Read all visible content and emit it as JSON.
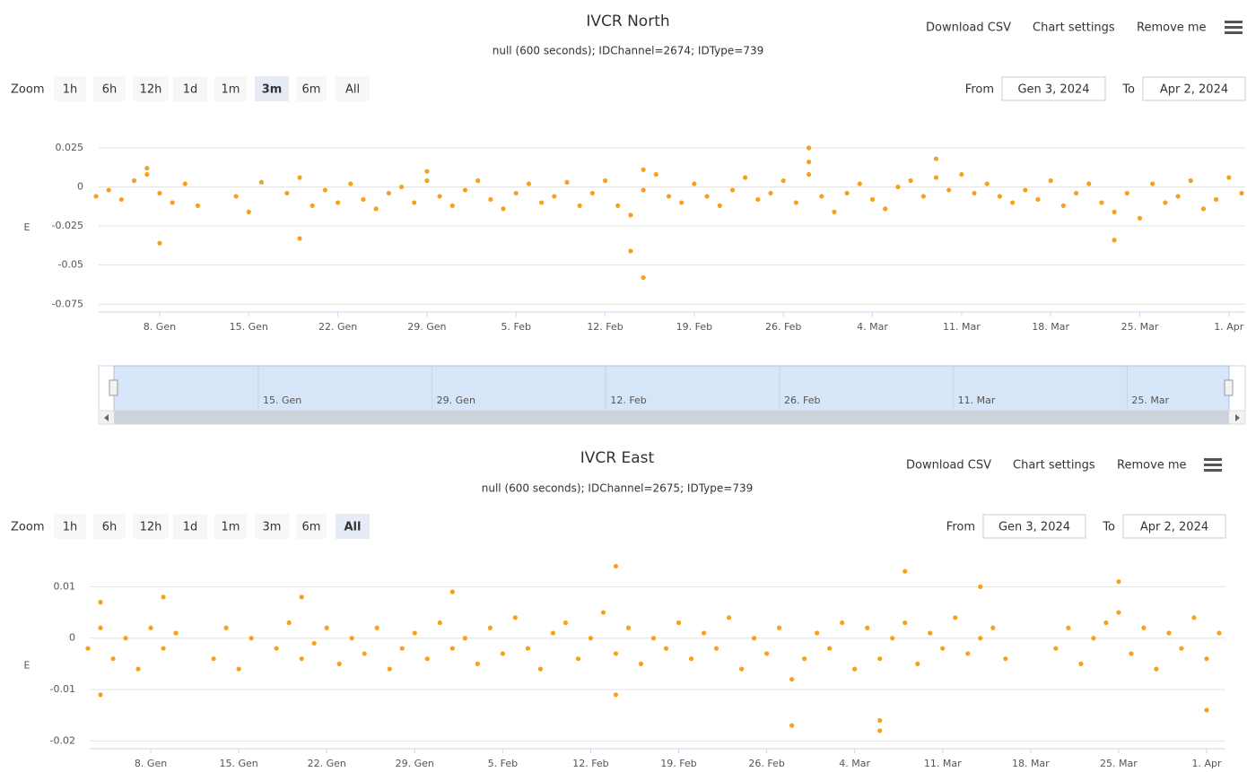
{
  "chart_data": [
    {
      "type": "scatter",
      "title": "IVCR North",
      "subtitle": "null (600 seconds); IDChannel=2674; IDType=739",
      "menu": [
        "Download CSV",
        "Chart settings",
        "Remove me"
      ],
      "zoom_label": "Zoom",
      "zoom_buttons": [
        "1h",
        "6h",
        "12h",
        "1d",
        "1m",
        "3m",
        "6m",
        "All"
      ],
      "zoom_selected": "3m",
      "zoom_disabled": [
        "6m",
        "All"
      ],
      "from_label": "From",
      "from": "Gen 3, 2024",
      "to_label": "To",
      "to": "Apr 2, 2024",
      "y_label": "E",
      "color": "#f7a11a",
      "grid": true,
      "xlim": [
        "2024-01-03",
        "2024-04-02"
      ],
      "xticks": [
        {
          "value": "2024-01-08",
          "label": "8. Gen"
        },
        {
          "value": "2024-01-15",
          "label": "15. Gen"
        },
        {
          "value": "2024-01-22",
          "label": "22. Gen"
        },
        {
          "value": "2024-01-29",
          "label": "29. Gen"
        },
        {
          "value": "2024-02-05",
          "label": "5. Feb"
        },
        {
          "value": "2024-02-12",
          "label": "12. Feb"
        },
        {
          "value": "2024-02-19",
          "label": "19. Feb"
        },
        {
          "value": "2024-02-26",
          "label": "26. Feb"
        },
        {
          "value": "2024-03-04",
          "label": "4. Mar"
        },
        {
          "value": "2024-03-11",
          "label": "11. Mar"
        },
        {
          "value": "2024-03-18",
          "label": "18. Mar"
        },
        {
          "value": "2024-03-25",
          "label": "25. Mar"
        },
        {
          "value": "2024-04-01",
          "label": "1. Apr"
        }
      ],
      "ylim": [
        -0.08,
        0.045
      ],
      "yticks": [
        -0.075,
        -0.05,
        -0.025,
        0,
        0.025
      ],
      "navigator_ticks": [
        {
          "value": "2024-01-15",
          "label": "15. Gen"
        },
        {
          "value": "2024-01-29",
          "label": "29. Gen"
        },
        {
          "value": "2024-02-12",
          "label": "12. Feb"
        },
        {
          "value": "2024-02-26",
          "label": "26. Feb"
        },
        {
          "value": "2024-03-11",
          "label": "11. Mar"
        },
        {
          "value": "2024-03-25",
          "label": "25. Mar"
        }
      ],
      "x": [
        "2024-01-03",
        "2024-01-04",
        "2024-01-05",
        "2024-01-06",
        "2024-01-07",
        "2024-01-08",
        "2024-01-09",
        "2024-01-10",
        "2024-01-11",
        "2024-01-14",
        "2024-01-15",
        "2024-01-16",
        "2024-01-18",
        "2024-01-19",
        "2024-01-20",
        "2024-01-21",
        "2024-01-22",
        "2024-01-23",
        "2024-01-24",
        "2024-01-25",
        "2024-01-26",
        "2024-01-27",
        "2024-01-28",
        "2024-01-29",
        "2024-01-30",
        "2024-01-31",
        "2024-02-01",
        "2024-02-02",
        "2024-02-03",
        "2024-02-04",
        "2024-02-05",
        "2024-02-06",
        "2024-02-07",
        "2024-02-08",
        "2024-02-09",
        "2024-02-10",
        "2024-02-11",
        "2024-02-12",
        "2024-02-13",
        "2024-02-14",
        "2024-02-15",
        "2024-02-16",
        "2024-02-17",
        "2024-02-18",
        "2024-02-19",
        "2024-02-20",
        "2024-02-21",
        "2024-02-22",
        "2024-02-23",
        "2024-02-24",
        "2024-02-25",
        "2024-02-26",
        "2024-02-27",
        "2024-02-28",
        "2024-02-29",
        "2024-03-01",
        "2024-03-02",
        "2024-03-03",
        "2024-03-04",
        "2024-03-05",
        "2024-03-06",
        "2024-03-07",
        "2024-03-08",
        "2024-03-09",
        "2024-03-10",
        "2024-03-11",
        "2024-03-12",
        "2024-03-13",
        "2024-03-14",
        "2024-03-15",
        "2024-03-16",
        "2024-03-17",
        "2024-03-18",
        "2024-03-19",
        "2024-03-20",
        "2024-03-21",
        "2024-03-22",
        "2024-03-23",
        "2024-03-24",
        "2024-03-25",
        "2024-03-26",
        "2024-03-27",
        "2024-03-28",
        "2024-03-29",
        "2024-03-30",
        "2024-03-31",
        "2024-04-01",
        "2024-04-02",
        "2024-01-08",
        "2024-01-07",
        "2024-01-19",
        "2024-01-29",
        "2024-02-14",
        "2024-02-15",
        "2024-02-28",
        "2024-02-28",
        "2024-03-09",
        "2024-03-23",
        "2024-02-15"
      ],
      "values": [
        -0.006,
        -0.002,
        -0.008,
        0.004,
        0.008,
        -0.004,
        -0.01,
        0.002,
        -0.012,
        -0.006,
        -0.016,
        0.003,
        -0.004,
        0.006,
        -0.012,
        -0.002,
        -0.01,
        0.002,
        -0.008,
        -0.014,
        -0.004,
        0,
        -0.01,
        0.004,
        -0.006,
        -0.012,
        -0.002,
        0.004,
        -0.008,
        -0.014,
        -0.004,
        0.002,
        -0.01,
        -0.006,
        0.003,
        -0.012,
        -0.004,
        0.004,
        -0.012,
        -0.018,
        -0.002,
        0.008,
        -0.006,
        -0.01,
        0.002,
        -0.006,
        -0.012,
        -0.002,
        0.006,
        -0.008,
        -0.004,
        0.004,
        -0.01,
        0.008,
        -0.006,
        -0.016,
        -0.004,
        0.002,
        -0.008,
        -0.014,
        0,
        0.004,
        -0.006,
        0.006,
        -0.002,
        0.008,
        -0.004,
        0.002,
        -0.006,
        -0.01,
        -0.002,
        -0.008,
        0.004,
        -0.012,
        -0.004,
        0.002,
        -0.01,
        -0.016,
        -0.004,
        -0.02,
        0.002,
        -0.01,
        -0.006,
        0.004,
        -0.014,
        -0.008,
        0.006,
        -0.004,
        -0.036,
        0.012,
        -0.033,
        0.01,
        -0.041,
        -0.058,
        0.025,
        0.016,
        0.018,
        -0.034,
        0.011
      ]
    },
    {
      "type": "scatter",
      "title": "IVCR East",
      "subtitle": "null (600 seconds); IDChannel=2675; IDType=739",
      "menu": [
        "Download CSV",
        "Chart settings",
        "Remove me"
      ],
      "zoom_label": "Zoom",
      "zoom_buttons": [
        "1h",
        "6h",
        "12h",
        "1d",
        "1m",
        "3m",
        "6m",
        "All"
      ],
      "zoom_selected": "All",
      "zoom_disabled": [
        "6m"
      ],
      "from_label": "From",
      "from": "Gen 3, 2024",
      "to_label": "To",
      "to": "Apr 2, 2024",
      "y_label": "E",
      "color": "#f7a11a",
      "grid": true,
      "xlim": [
        "2024-01-03",
        "2024-04-02"
      ],
      "xticks": [
        {
          "value": "2024-01-08",
          "label": "8. Gen"
        },
        {
          "value": "2024-01-15",
          "label": "15. Gen"
        },
        {
          "value": "2024-01-22",
          "label": "22. Gen"
        },
        {
          "value": "2024-01-29",
          "label": "29. Gen"
        },
        {
          "value": "2024-02-05",
          "label": "5. Feb"
        },
        {
          "value": "2024-02-12",
          "label": "12. Feb"
        },
        {
          "value": "2024-02-19",
          "label": "19. Feb"
        },
        {
          "value": "2024-02-26",
          "label": "26. Feb"
        },
        {
          "value": "2024-03-04",
          "label": "4. Mar"
        },
        {
          "value": "2024-03-11",
          "label": "11. Mar"
        },
        {
          "value": "2024-03-18",
          "label": "18. Mar"
        },
        {
          "value": "2024-03-25",
          "label": "25. Mar"
        },
        {
          "value": "2024-04-01",
          "label": "1. Apr"
        }
      ],
      "ylim": [
        -0.0215,
        0.016
      ],
      "yticks": [
        -0.02,
        -0.01,
        0,
        0.01
      ],
      "x": [
        "2024-01-03",
        "2024-01-04",
        "2024-01-05",
        "2024-01-06",
        "2024-01-07",
        "2024-01-08",
        "2024-01-09",
        "2024-01-10",
        "2024-01-13",
        "2024-01-14",
        "2024-01-15",
        "2024-01-16",
        "2024-01-18",
        "2024-01-19",
        "2024-01-20",
        "2024-01-21",
        "2024-01-22",
        "2024-01-23",
        "2024-01-24",
        "2024-01-25",
        "2024-01-26",
        "2024-01-27",
        "2024-01-28",
        "2024-01-29",
        "2024-01-30",
        "2024-01-31",
        "2024-02-01",
        "2024-02-02",
        "2024-02-03",
        "2024-02-04",
        "2024-02-05",
        "2024-02-06",
        "2024-02-07",
        "2024-02-08",
        "2024-02-09",
        "2024-02-10",
        "2024-02-11",
        "2024-02-12",
        "2024-02-13",
        "2024-02-14",
        "2024-02-15",
        "2024-02-16",
        "2024-02-17",
        "2024-02-18",
        "2024-02-19",
        "2024-02-20",
        "2024-02-21",
        "2024-02-22",
        "2024-02-23",
        "2024-02-24",
        "2024-02-25",
        "2024-02-26",
        "2024-02-27",
        "2024-02-28",
        "2024-02-29",
        "2024-03-01",
        "2024-03-02",
        "2024-03-03",
        "2024-03-04",
        "2024-03-05",
        "2024-03-06",
        "2024-03-07",
        "2024-03-08",
        "2024-03-09",
        "2024-03-10",
        "2024-03-11",
        "2024-03-12",
        "2024-03-13",
        "2024-03-14",
        "2024-03-15",
        "2024-03-16",
        "2024-03-20",
        "2024-03-21",
        "2024-03-22",
        "2024-03-23",
        "2024-03-24",
        "2024-03-25",
        "2024-03-26",
        "2024-03-27",
        "2024-03-28",
        "2024-03-29",
        "2024-03-30",
        "2024-03-31",
        "2024-04-01",
        "2024-04-02",
        "2024-01-04",
        "2024-01-04",
        "2024-01-09",
        "2024-01-20",
        "2024-02-01",
        "2024-02-14",
        "2024-02-14",
        "2024-02-28",
        "2024-03-06",
        "2024-03-06",
        "2024-03-08",
        "2024-03-14",
        "2024-03-25",
        "2024-04-01"
      ],
      "values": [
        -0.002,
        0.002,
        -0.004,
        0,
        -0.006,
        0.002,
        -0.002,
        0.001,
        -0.004,
        0.002,
        -0.006,
        0,
        -0.002,
        0.003,
        -0.004,
        -0.001,
        0.002,
        -0.005,
        0,
        -0.003,
        0.002,
        -0.006,
        -0.002,
        0.001,
        -0.004,
        0.003,
        -0.002,
        0,
        -0.005,
        0.002,
        -0.003,
        0.004,
        -0.002,
        -0.006,
        0.001,
        0.003,
        -0.004,
        0,
        0.005,
        -0.003,
        0.002,
        -0.005,
        0,
        -0.002,
        0.003,
        -0.004,
        0.001,
        -0.002,
        0.004,
        -0.006,
        0,
        -0.003,
        0.002,
        -0.008,
        -0.004,
        0.001,
        -0.002,
        0.003,
        -0.006,
        0.002,
        -0.004,
        0,
        0.003,
        -0.005,
        0.001,
        -0.002,
        0.004,
        -0.003,
        0,
        0.002,
        -0.004,
        -0.002,
        0.002,
        -0.005,
        0,
        0.003,
        0.005,
        -0.003,
        0.002,
        -0.006,
        0.001,
        -0.002,
        0.004,
        -0.004,
        0.001,
        -0.011,
        0.007,
        0.008,
        0.008,
        0.009,
        0.014,
        -0.011,
        -0.017,
        -0.016,
        -0.018,
        0.013,
        0.01,
        0.011,
        -0.014
      ]
    }
  ]
}
